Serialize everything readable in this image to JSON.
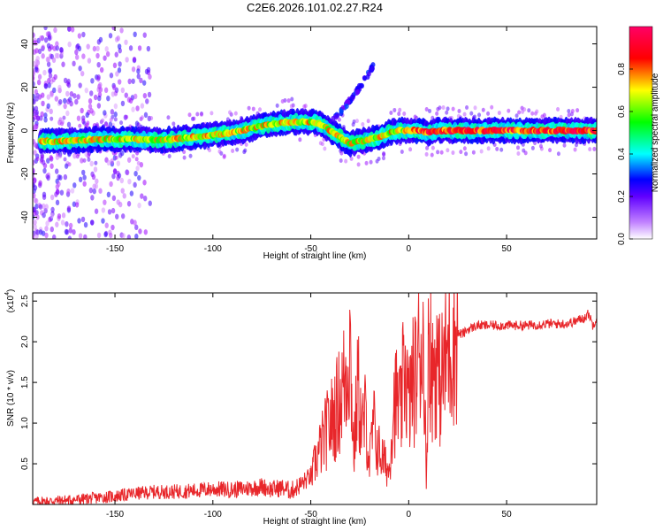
{
  "title": "C2E6.2026.101.02.27.R24",
  "colors": {
    "snr_line": "#e8262a",
    "axis": "#000000",
    "background": "#ffffff"
  },
  "chart_data": [
    {
      "type": "heatmap",
      "xlabel": "Height of straight line (km)",
      "ylabel": "Frequency (Hz)",
      "xlim": [
        -192,
        96
      ],
      "ylim": [
        -50,
        48
      ],
      "xticks": [
        "-150",
        "-100",
        "-50",
        "0",
        "50"
      ],
      "xtick_values": [
        -150,
        -100,
        -50,
        0,
        50
      ],
      "yticks": [
        "-40",
        "-20",
        "0",
        "20",
        "40"
      ],
      "ytick_values": [
        -40,
        -20,
        0,
        20,
        40
      ],
      "colorbar": {
        "label": "Normalized spectral amplitude",
        "range": [
          0,
          1
        ],
        "ticks": [
          "0.0",
          "0.2",
          "0.4",
          "0.6",
          "0.8"
        ],
        "tick_values": [
          0,
          0.2,
          0.4,
          0.6,
          0.8
        ],
        "colormap": [
          "#ffffff",
          "#a000ff",
          "#0000ff",
          "#00ffff",
          "#00ff00",
          "#ffff00",
          "#ff0000",
          "#ff0066"
        ]
      },
      "ridge": {
        "x": [
          -188,
          -180,
          -170,
          -160,
          -150,
          -140,
          -130,
          -120,
          -110,
          -100,
          -90,
          -80,
          -70,
          -60,
          -50,
          -45,
          -40,
          -35,
          -30,
          -25,
          -20,
          -15,
          -10,
          -5,
          0,
          5,
          10,
          15,
          20,
          30,
          40,
          50,
          60,
          70,
          80,
          90,
          95
        ],
        "y": [
          -5,
          -5,
          -4.5,
          -4,
          -4,
          -4,
          -4.5,
          -4,
          -3,
          -2,
          -1,
          1,
          3,
          4,
          4,
          3,
          0,
          -3,
          -6,
          -5,
          -4,
          -3,
          -1,
          0,
          0,
          0,
          -1,
          0,
          0,
          0,
          0,
          0,
          0,
          0,
          0,
          0,
          0
        ]
      },
      "branch": {
        "x": [
          -40,
          -35,
          -30,
          -25,
          -20,
          -18
        ],
        "y": [
          4,
          8,
          14,
          20,
          27,
          30
        ]
      }
    },
    {
      "type": "line",
      "xlabel": "Height of straight line (km)",
      "ylabel": "SNR (10 * v/v)",
      "yscale_label": "(x10",
      "yscale_exp": "4",
      "xlim": [
        -192,
        96
      ],
      "ylim": [
        0,
        2.6
      ],
      "xticks": [
        "-150",
        "-100",
        "-50",
        "0",
        "50"
      ],
      "xtick_values": [
        -150,
        -100,
        -50,
        0,
        50
      ],
      "yticks": [
        "0.5",
        "1.0",
        "1.5",
        "2.0",
        "2.5"
      ],
      "ytick_values": [
        0.5,
        1.0,
        1.5,
        2.0,
        2.5
      ],
      "series": [
        {
          "color": "#e8262a",
          "x": [
            -192,
            -180,
            -170,
            -160,
            -150,
            -140,
            -130,
            -120,
            -110,
            -100,
            -90,
            -80,
            -75,
            -70,
            -65,
            -60,
            -55,
            -50,
            -48,
            -45,
            -42,
            -40,
            -38,
            -35,
            -32,
            -30,
            -28,
            -26,
            -24,
            -22,
            -20,
            -18,
            -16,
            -14,
            -12,
            -10,
            -8,
            -6,
            -4,
            -2,
            0,
            2,
            4,
            6,
            8,
            9,
            10,
            12,
            14,
            16,
            18,
            20,
            22,
            25,
            28,
            30,
            35,
            40,
            50,
            60,
            70,
            80,
            85,
            90,
            92,
            94,
            96
          ],
          "y": [
            0.01,
            0.02,
            0.03,
            0.05,
            0.07,
            0.1,
            0.12,
            0.12,
            0.13,
            0.15,
            0.14,
            0.16,
            0.18,
            0.14,
            0.16,
            0.12,
            0.2,
            0.3,
            0.5,
            0.7,
            0.9,
            1.0,
            1.1,
            1.3,
            1.6,
            2.0,
            0.6,
            1.5,
            0.9,
            1.1,
            0.5,
            1.0,
            0.7,
            0.6,
            0.5,
            0.4,
            1.2,
            1.3,
            1.1,
            1.8,
            1.2,
            1.5,
            1.6,
            2.0,
            1.9,
            0.1,
            2.2,
            1.6,
            1.8,
            1.5,
            1.7,
            1.9,
            2.0,
            2.1,
            2.1,
            2.15,
            2.2,
            2.2,
            2.2,
            2.2,
            2.22,
            2.22,
            2.25,
            2.3,
            2.35,
            2.2,
            2.3
          ]
        }
      ]
    }
  ]
}
